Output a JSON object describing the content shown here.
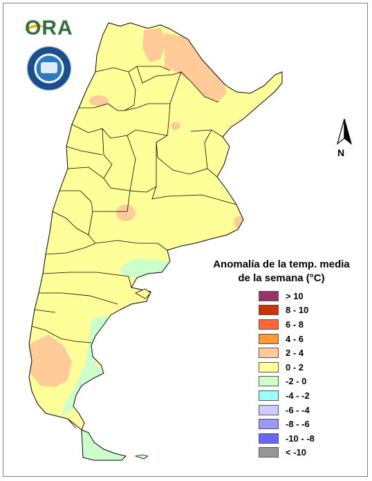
{
  "logo": {
    "text": "ORA"
  },
  "north_arrow": {
    "letter": "N"
  },
  "legend": {
    "title_line1": "Anomalía de la temp. media",
    "title_line2": "de la semana (°C)",
    "items": [
      {
        "label": "> 10",
        "color": "#993366"
      },
      {
        "label": "8 - 10",
        "color": "#cc3300"
      },
      {
        "label": "6 - 8",
        "color": "#ff6633"
      },
      {
        "label": "4 - 6",
        "color": "#ff9933"
      },
      {
        "label": "2 - 4",
        "color": "#ffcc99"
      },
      {
        "label": "0 - 2",
        "color": "#ffff99"
      },
      {
        "label": "-2 - 0",
        "color": "#ccffcc"
      },
      {
        "label": "-4 - -2",
        "color": "#99ffff"
      },
      {
        "label": "-6 - -4",
        "color": "#ccccff"
      },
      {
        "label": "-8 - -6",
        "color": "#9999ff"
      },
      {
        "label": "-10 - -8",
        "color": "#6666ff"
      },
      {
        "label": "< -10",
        "color": "#969696"
      }
    ]
  },
  "map_colors": {
    "base": "#ffff99",
    "warm": "#ffcc99",
    "cool": "#ccffcc",
    "border": "#000000"
  }
}
